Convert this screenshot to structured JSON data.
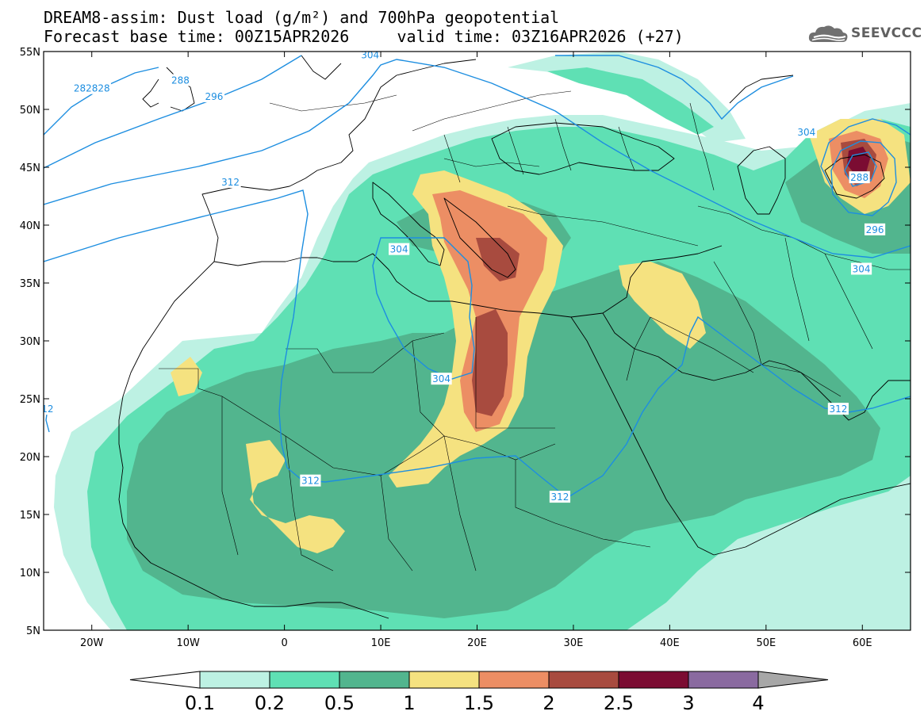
{
  "title_line1": "DREAM8-assim: Dust load (g/m²) and 700hPa geopotential",
  "title_line2": "Forecast base time: 00Z15APR2026     valid time: 03Z16APR2026 (+27)",
  "logo": {
    "text": "SEEVCCC",
    "icon": "cloud-icon"
  },
  "map": {
    "lon_range": [
      -25,
      65
    ],
    "lat_range": [
      5,
      55
    ],
    "lat_labels": [
      "55N",
      "50N",
      "45N",
      "40N",
      "35N",
      "30N",
      "25N",
      "20N",
      "15N",
      "10N",
      "5N"
    ],
    "lon_labels": [
      "20W",
      "10W",
      "0",
      "10E",
      "20E",
      "30E",
      "40E",
      "50E",
      "60E"
    ],
    "contour_labels": [
      {
        "text": "282828",
        "lon": -20.0,
        "lat": 51.8
      },
      {
        "text": "288",
        "lon": -10.8,
        "lat": 52.5
      },
      {
        "text": "296",
        "lon": -7.3,
        "lat": 51.1
      },
      {
        "text": "304",
        "lon": 8.9,
        "lat": 54.7
      },
      {
        "text": "304",
        "lon": 54.2,
        "lat": 48.0
      },
      {
        "text": "312",
        "lon": -5.6,
        "lat": 43.7
      },
      {
        "text": "304",
        "lon": 11.9,
        "lat": 37.9
      },
      {
        "text": "304",
        "lon": 16.3,
        "lat": 26.7
      },
      {
        "text": "312",
        "lon": 28.6,
        "lat": 16.5
      },
      {
        "text": "312",
        "lon": 2.7,
        "lat": 17.9
      },
      {
        "text": "312",
        "lon": 57.5,
        "lat": 24.1
      },
      {
        "text": "304",
        "lon": 59.9,
        "lat": 36.2
      },
      {
        "text": "296",
        "lon": 61.3,
        "lat": 39.6
      },
      {
        "text": "288",
        "lon": 59.7,
        "lat": 44.1
      },
      {
        "text": "12",
        "lon": -24.6,
        "lat": 24.1
      }
    ]
  },
  "colorbar": {
    "levels": [
      "0.1",
      "0.2",
      "0.5",
      "1",
      "1.5",
      "2",
      "2.5",
      "3",
      "4"
    ],
    "colors": [
      "#ffffff",
      "#bdf1e3",
      "#5fe0b4",
      "#52b58e",
      "#f5e280",
      "#ec8e64",
      "#a84b3f",
      "#7b0c32",
      "#8a6aa0",
      "#a7a7a7"
    ]
  }
}
